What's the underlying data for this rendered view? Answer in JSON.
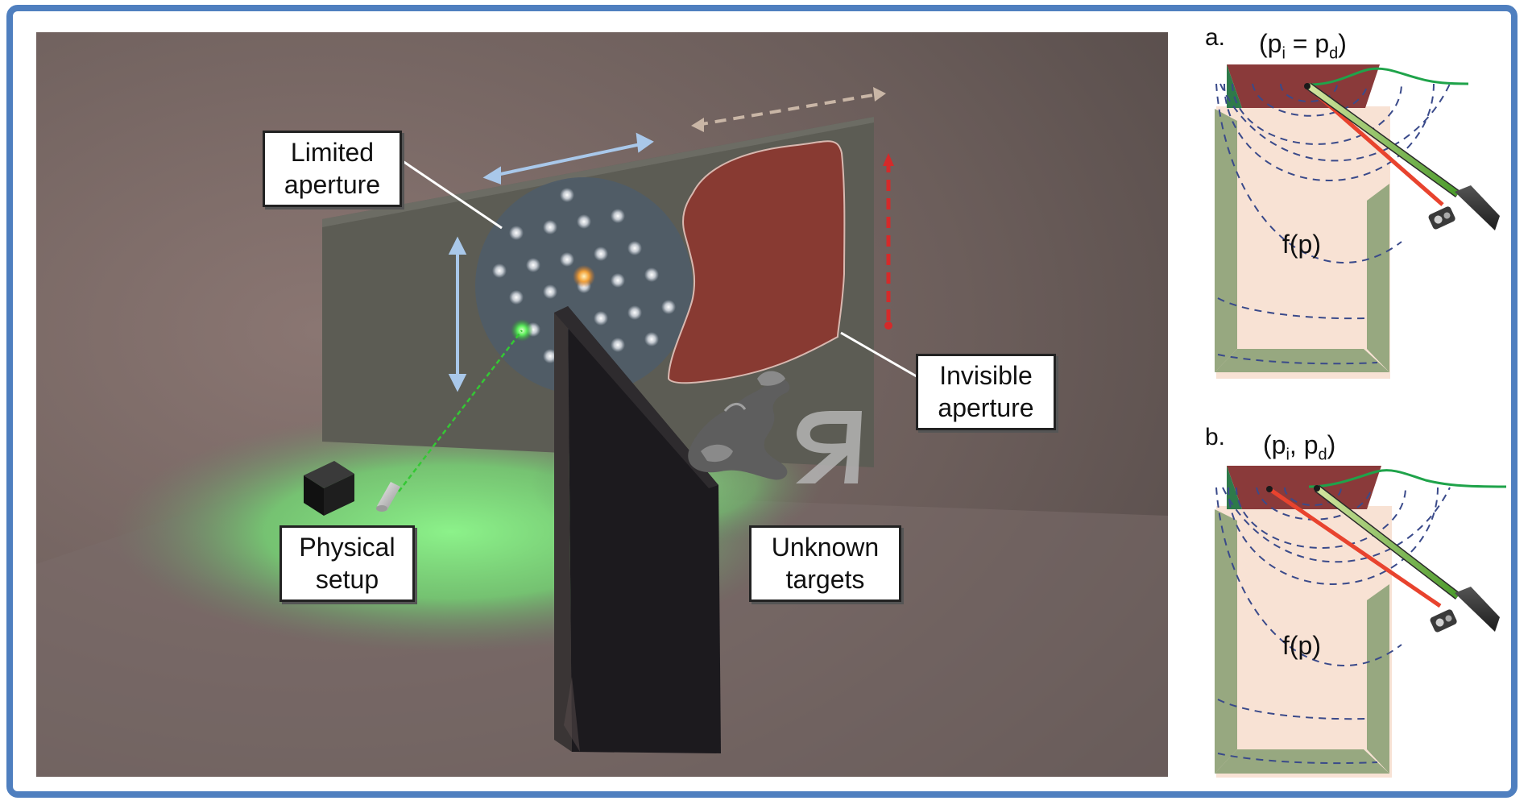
{
  "main_scene": {
    "labels": {
      "limited_aperture": [
        "Limited",
        "aperture"
      ],
      "invisible_aperture": [
        "Invisible",
        "aperture"
      ],
      "physical_setup": [
        "Physical",
        "setup"
      ],
      "unknown_targets": [
        "Unknown",
        "targets"
      ]
    },
    "colors": {
      "scan_arrow": "#a9c8ea",
      "red_dashed": "#d42a2a",
      "laser": "#2fbf2f",
      "invisible_region": "#8a3a30"
    }
  },
  "panel_a": {
    "letter": "a.",
    "eq_open": "(p",
    "eq_sub1": "i",
    "eq_mid": " = p",
    "eq_sub2": "d",
    "eq_close": ")",
    "region_label": "f(p)"
  },
  "panel_b": {
    "letter": "b.",
    "eq_open": "(p",
    "eq_sub1": "i",
    "eq_mid": ", p",
    "eq_sub2": "d",
    "eq_close": ")",
    "region_label": "f(p)"
  }
}
